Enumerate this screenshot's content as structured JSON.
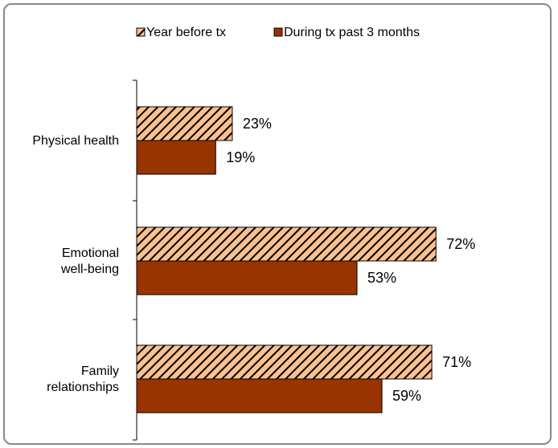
{
  "chart_data": {
    "type": "bar",
    "orientation": "horizontal",
    "categories": [
      "Physical health",
      "Emotional\nwell-being",
      "Family\nrelationships"
    ],
    "category_lines": [
      [
        "Physical health"
      ],
      [
        "Emotional",
        "well-being"
      ],
      [
        "Family",
        "relationships"
      ]
    ],
    "series": [
      {
        "name": "Year before tx",
        "values": [
          23,
          72,
          71
        ],
        "labels": [
          "23%",
          "72%",
          "71%"
        ],
        "pattern": "hatched",
        "color": "#FAC090"
      },
      {
        "name": "During tx past 3 months",
        "values": [
          19,
          53,
          59
        ],
        "labels": [
          "19%",
          "53%",
          "59%"
        ],
        "pattern": "solid",
        "color": "#993300"
      }
    ],
    "xlim": [
      0,
      100
    ],
    "legend_position": "top",
    "grid": false
  }
}
